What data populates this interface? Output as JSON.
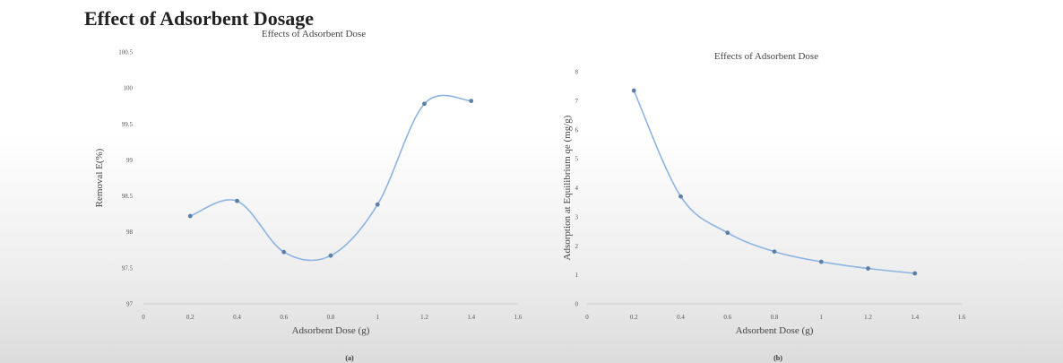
{
  "page": {
    "heading": "Effect of Adsorbent Dosage"
  },
  "chart_data": [
    {
      "type": "line",
      "title": "Effects of Adsorbent Dose",
      "xlabel": "Adsorbent Dose (g)",
      "ylabel": "Removal E(%)",
      "caption": "(a)",
      "xlim": [
        0,
        1.6
      ],
      "ylim": [
        97,
        100.5
      ],
      "x_ticks": [
        "0",
        "0.2",
        "0.4",
        "0.6",
        "0.8",
        "1",
        "1.2",
        "1.4",
        "1.6"
      ],
      "y_ticks": [
        "97",
        "97.5",
        "98",
        "98.5",
        "99",
        "99.5",
        "100",
        "100.5"
      ],
      "series": [
        {
          "x": [
            0.2,
            0.4,
            0.6,
            0.8,
            1.0,
            1.2,
            1.4
          ],
          "y": [
            98.22,
            98.43,
            97.72,
            97.67,
            98.38,
            99.78,
            99.82
          ]
        }
      ],
      "grid": false,
      "line_color": "#8db4e2",
      "marker_color": "#5b7fa6"
    },
    {
      "type": "line",
      "title": "Effects of Adsorbent Dose",
      "xlabel": "Adsorbent Dose (g)",
      "ylabel": "Adsorption at Equilibrium qe (mg/g)",
      "caption": "(b)",
      "xlim": [
        0,
        1.6
      ],
      "ylim": [
        0,
        8
      ],
      "x_ticks": [
        "0",
        "0.2",
        "0.4",
        "0.6",
        "0.8",
        "1",
        "1.2",
        "1.4",
        "1.6"
      ],
      "y_ticks": [
        "0",
        "1",
        "2",
        "3",
        "4",
        "5",
        "6",
        "7",
        "8"
      ],
      "series": [
        {
          "x": [
            0.2,
            0.4,
            0.6,
            0.8,
            1.0,
            1.2,
            1.4
          ],
          "y": [
            7.35,
            3.7,
            2.45,
            1.8,
            1.45,
            1.22,
            1.05
          ]
        }
      ],
      "grid": false,
      "line_color": "#8db4e2",
      "marker_color": "#5b7fa6"
    }
  ]
}
